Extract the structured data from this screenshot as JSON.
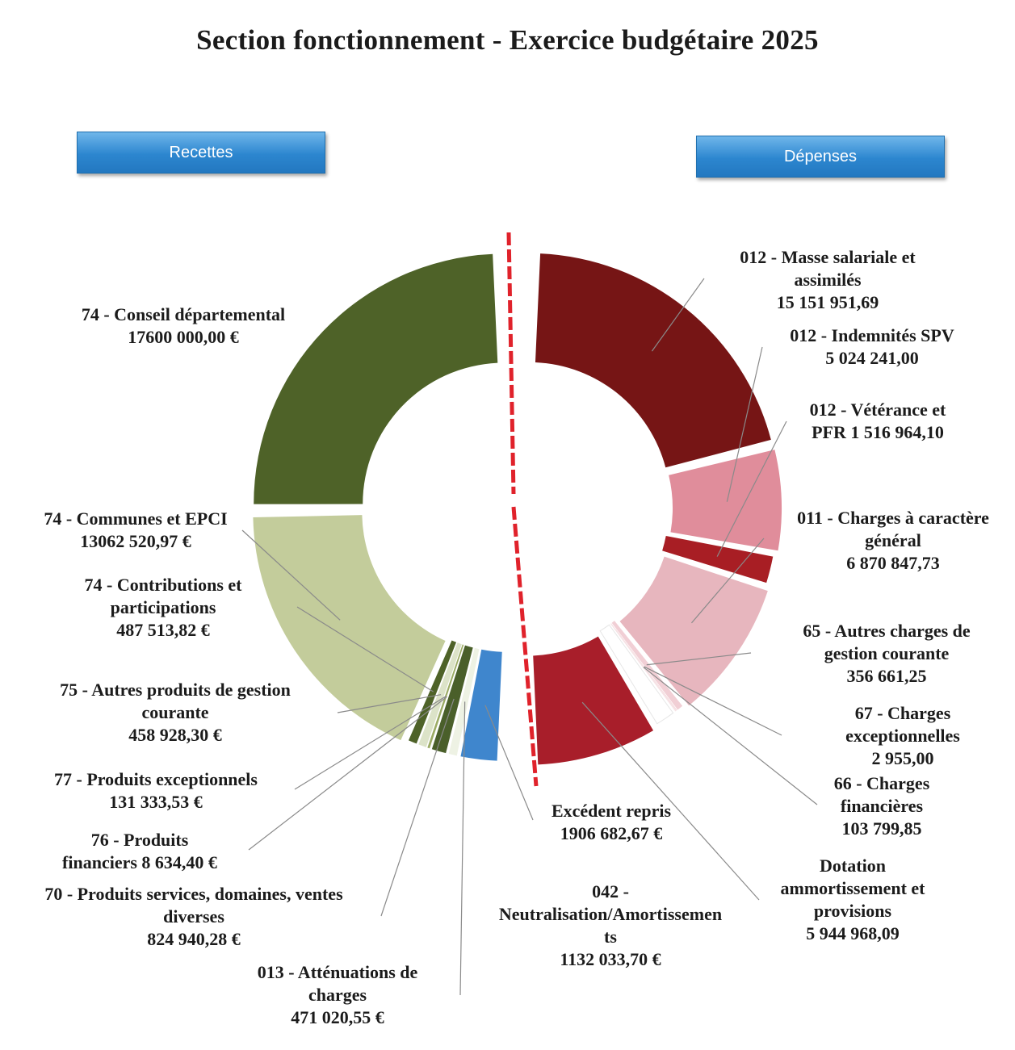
{
  "chart_data": {
    "type": "pie",
    "title": "Section fonctionnement - Exercice budgétaire 2025",
    "groups": [
      {
        "name": "Recettes",
        "series": [
          {
            "name": "74 - Conseil départemental",
            "value": 17600000.0,
            "display_value": "17600 000,00 €",
            "color": "#4e6228"
          },
          {
            "name": "74 - Communes et EPCI",
            "value": 13062520.97,
            "display_value": "13062 520,97 €",
            "color": "#c3cc9b"
          },
          {
            "name": "74 - Contributions et participations",
            "value": 487513.82,
            "display_value": "487 513,82 €",
            "color": "#4e6228"
          },
          {
            "name": "75 - Autres produits de gestion courante",
            "value": 458928.3,
            "display_value": "458 928,30 €",
            "color": "#dce3c8"
          },
          {
            "name": "77 - Produits exceptionnels",
            "value": 131333.53,
            "display_value": "131 333,53 €",
            "color": "#9bab64"
          },
          {
            "name": "76 - Produits financiers",
            "value": 8634.4,
            "display_value": "8 634,40 €",
            "color": "#edf1e0"
          },
          {
            "name": "70 - Produits services, domaines, ventes diverses",
            "value": 824940.28,
            "display_value": "824 940,28 €",
            "color": "#4a5f2a"
          },
          {
            "name": "013 - Atténuations de charges",
            "value": 471020.55,
            "display_value": "471 020,55 €",
            "color": "#eef2e4"
          },
          {
            "name": "Excédent repris",
            "value": 1906682.67,
            "display_value": "1906 682,67 €",
            "color": "#3f86cd"
          }
        ]
      },
      {
        "name": "Dépenses",
        "series": [
          {
            "name": "012 - Masse salariale et assimilés",
            "value": 15151951.69,
            "display_value": "15 151 951,69",
            "color": "#761515"
          },
          {
            "name": "012 - Indemnités SPV",
            "value": 5024241.0,
            "display_value": "5 024 241,00",
            "color": "#e08d9b"
          },
          {
            "name": "012 - Vétérance et PFR",
            "value": 1516964.1,
            "display_value": "1 516 964,10",
            "color": "#a81e24"
          },
          {
            "name": "011 - Charges à caractère général",
            "value": 6870847.73,
            "display_value": "6 870 847,73",
            "color": "#e7b6be"
          },
          {
            "name": "65 - Autres charges de gestion courante",
            "value": 356661.25,
            "display_value": "356 661,25",
            "color": "#f1cfd5"
          },
          {
            "name": "67 - Charges exceptionnelles",
            "value": 2955.0,
            "display_value": "2 955,00",
            "color": "#c43840"
          },
          {
            "name": "66 - Charges financières",
            "value": 103799.85,
            "display_value": "103 799,85",
            "color": "#f6e2e5"
          },
          {
            "name": "042 - Neutralisation/Amortissements",
            "value": 1132033.7,
            "display_value": "1132 033,70 €",
            "color": "#ffffff"
          },
          {
            "name": "Dotation ammortissement et provisions",
            "value": 5944968.09,
            "display_value": "5 944 968,09",
            "color": "#a81e2a"
          }
        ]
      }
    ]
  },
  "page": {
    "title": "Section fonctionnement - Exercice budgétaire 2025",
    "btn_recettes": "Recettes",
    "btn_depenses": "Dépenses"
  },
  "labels": {
    "conseil": [
      "74 - Conseil départemental",
      "17600 000,00 €"
    ],
    "communes": [
      "74 - Communes et EPCI",
      "13062 520,97 €"
    ],
    "contributions": [
      "74 - Contributions et",
      "participations",
      "487 513,82 €"
    ],
    "autres_produits": [
      "75 - Autres produits de gestion",
      "courante",
      "458 928,30 €"
    ],
    "exceptionnels": [
      "77 - Produits exceptionnels",
      "131 333,53 €"
    ],
    "financiers": [
      "76 - Produits",
      "financiers 8 634,40 €"
    ],
    "services": [
      "70 - Produits services, domaines, ventes",
      "diverses",
      "824 940,28 €"
    ],
    "attenuations": [
      "013 - Atténuations de",
      "charges",
      "471 020,55 €"
    ],
    "excedent": [
      "Excédent repris",
      "1906 682,67 €"
    ],
    "neutralisation": [
      "042 -",
      "Neutralisation/Amortissemen",
      "ts",
      "1132 033,70 €"
    ],
    "masse": [
      "012 - Masse salariale et",
      "assimilés",
      "15 151 951,69"
    ],
    "spv": [
      "012 - Indemnités SPV",
      "5 024 241,00"
    ],
    "veterance": [
      "012 - Vétérance et",
      "PFR 1 516 964,10"
    ],
    "charges_generales": [
      "011 - Charges à caractère",
      "général",
      "6 870 847,73"
    ],
    "autres_charges": [
      "65 - Autres charges de",
      "gestion courante",
      "356 661,25"
    ],
    "charges_exc": [
      "67 - Charges",
      "exceptionnelles",
      "2 955,00"
    ],
    "charges_fin": [
      "66 - Charges",
      "financières",
      "103 799,85"
    ],
    "dotation": [
      "Dotation",
      "ammortissement et",
      "provisions",
      "5 944 968,09"
    ]
  }
}
